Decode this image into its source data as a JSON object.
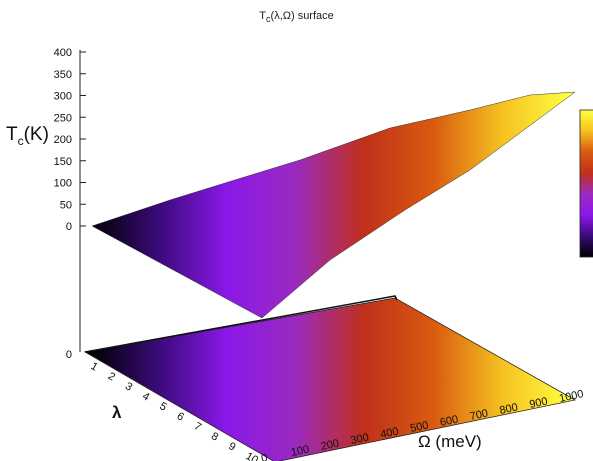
{
  "chart_data": {
    "type": "surface",
    "title_main": "T",
    "title_sub": "c",
    "title_rest": "(λ,Ω) surface",
    "zlabel_main": "T",
    "zlabel_sub": "c",
    "zlabel_rest": "(K)",
    "xlabel": "Ω (meV)",
    "ylabel": "λ",
    "zlim": [
      0,
      400
    ],
    "z_ticks": [
      "400",
      "350",
      "300",
      "250",
      "200",
      "150",
      "100",
      "50",
      "0"
    ],
    "x_range": [
      0,
      1000
    ],
    "x_ticks": [
      "0",
      "100",
      "200",
      "300",
      "400",
      "500",
      "600",
      "700",
      "800",
      "900",
      "1000"
    ],
    "y_range": [
      1,
      10
    ],
    "y_ticks": [
      "1",
      "2",
      "3",
      "4",
      "5",
      "6",
      "7",
      "8",
      "9",
      "10"
    ],
    "floor_tick": "0",
    "colormap": [
      "#000000",
      "#3a0a7a",
      "#8a18e8",
      "#9a2ac0",
      "#c0301a",
      "#d95a10",
      "#f5c020",
      "#ffff40"
    ],
    "colorbar": true,
    "grid": false,
    "surface_corners_Tc_K": {
      "omega_0_lambda_1": 0,
      "omega_0_lambda_10": 0,
      "omega_1000_lambda_1": 310,
      "omega_1000_lambda_10": 230
    }
  }
}
